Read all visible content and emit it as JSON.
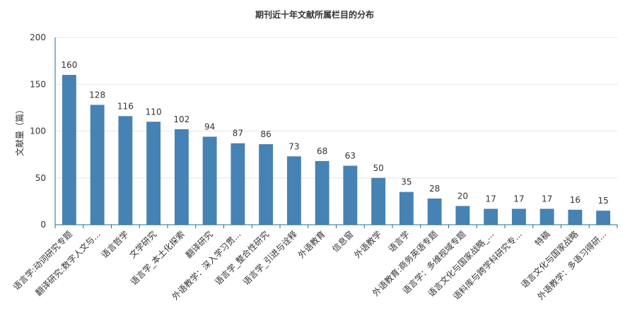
{
  "chart_data": {
    "type": "bar",
    "title": "期刊近十年文献所属栏目的分布",
    "ylabel": "文献量（篇）",
    "xlabel": "",
    "ylim": [
      0,
      200
    ],
    "yticks": [
      0,
      50,
      100,
      150,
      200
    ],
    "grid": true,
    "bar_color": "#4682b4",
    "categories": [
      "语言学:动词研究专题",
      "翻译研究:数字人文与...",
      "语言哲学",
      "文学研究",
      "语言学_本土化探索",
      "翻译研究",
      "外语教学：深入学习贯...",
      "语言学_整合性研究",
      "语言学_引进与诠释",
      "外语教育",
      "信息窗",
      "外语教学",
      "语言学",
      "外语教育:商务英语专题",
      "语言学：多维视域专题",
      "语言文化与国家战略_...",
      "语料库与跨学科研究专...",
      "特稿",
      "语言文化与国家战略",
      "外语教学：多语习得研..."
    ],
    "values": [
      160,
      128,
      116,
      110,
      102,
      94,
      87,
      86,
      73,
      68,
      63,
      50,
      35,
      28,
      20,
      17,
      17,
      17,
      16,
      15
    ]
  }
}
